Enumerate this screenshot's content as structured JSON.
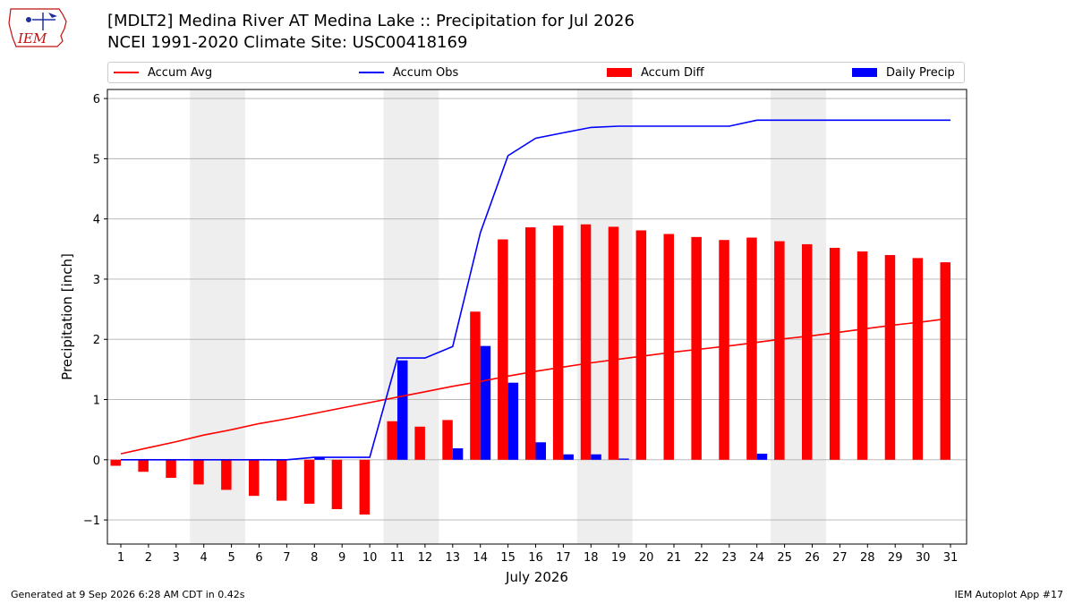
{
  "logo": {
    "text": "IEM"
  },
  "title_line1": "[MDLT2] Medina River  AT Medina Lake :: Precipitation for Jul 2026",
  "title_line2": "NCEI 1991-2020 Climate Site: USC00418169",
  "footer_left": "Generated at 9 Sep 2026 6:28 AM CDT in 0.42s",
  "footer_right": "IEM Autoplot App #17",
  "colors": {
    "avg": "#ff0000",
    "obs": "#0000ff",
    "diff": "#ff0000",
    "daily": "#0000ff",
    "weekend": "#eeeeee",
    "grid": "#b0b0b0"
  },
  "chart_data": {
    "type": "bar",
    "xlabel": "July 2026",
    "ylabel": "Precipitation [inch]",
    "ylim": [
      -1.4,
      6.15
    ],
    "yticks": [
      -1,
      0,
      1,
      2,
      3,
      4,
      5,
      6
    ],
    "ytick_labels": [
      "−1",
      "0",
      "1",
      "2",
      "3",
      "4",
      "5",
      "6"
    ],
    "grid": true,
    "legend_placement": "top",
    "days": [
      1,
      2,
      3,
      4,
      5,
      6,
      7,
      8,
      9,
      10,
      11,
      12,
      13,
      14,
      15,
      16,
      17,
      18,
      19,
      20,
      21,
      22,
      23,
      24,
      25,
      26,
      27,
      28,
      29,
      30,
      31
    ],
    "weekend_spans": [
      [
        4,
        5
      ],
      [
        11,
        12
      ],
      [
        18,
        19
      ],
      [
        25,
        26
      ]
    ],
    "series": [
      {
        "name": "Accum Avg",
        "kind": "line",
        "color": "#ff0000",
        "values": [
          0.1,
          0.2,
          0.3,
          0.41,
          0.5,
          0.6,
          0.68,
          0.77,
          0.86,
          0.95,
          1.04,
          1.13,
          1.22,
          1.3,
          1.39,
          1.47,
          1.54,
          1.61,
          1.67,
          1.73,
          1.79,
          1.84,
          1.89,
          1.95,
          2.01,
          2.06,
          2.12,
          2.18,
          2.24,
          2.29,
          2.35
        ]
      },
      {
        "name": "Accum Obs",
        "kind": "line",
        "color": "#0000ff",
        "values": [
          0,
          0,
          0,
          0,
          0,
          0,
          0,
          0.04,
          0.04,
          0.04,
          1.69,
          1.69,
          1.88,
          3.77,
          5.05,
          5.34,
          5.43,
          5.52,
          5.54,
          5.54,
          5.54,
          5.54,
          5.54,
          5.64,
          5.64,
          5.64,
          5.64,
          5.64,
          5.64,
          5.64,
          5.64
        ]
      },
      {
        "name": "Accum Diff",
        "kind": "bar",
        "color": "#ff0000",
        "values": [
          -0.1,
          -0.2,
          -0.3,
          -0.41,
          -0.5,
          -0.6,
          -0.68,
          -0.73,
          -0.82,
          -0.91,
          0.64,
          0.55,
          0.66,
          2.46,
          3.66,
          3.86,
          3.89,
          3.91,
          3.87,
          3.81,
          3.75,
          3.7,
          3.65,
          3.69,
          3.63,
          3.58,
          3.52,
          3.46,
          3.4,
          3.35,
          3.28
        ]
      },
      {
        "name": "Daily Precip",
        "kind": "bar",
        "color": "#0000ff",
        "values": [
          0,
          0,
          0,
          0,
          0,
          0,
          0,
          0.04,
          0,
          0,
          1.65,
          0,
          0.19,
          1.89,
          1.28,
          0.29,
          0.09,
          0.09,
          0.02,
          0,
          0,
          0,
          0,
          0.1,
          0,
          0,
          0,
          0,
          0,
          0,
          0
        ]
      }
    ]
  }
}
